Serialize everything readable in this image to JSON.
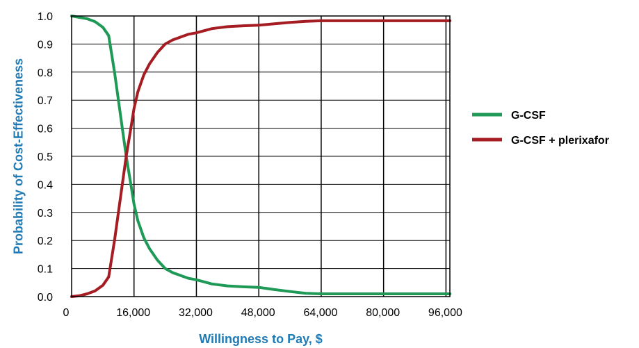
{
  "chart_data": {
    "type": "line",
    "title": "",
    "xlabel": "Willingness to Pay, $",
    "ylabel": "Probability of Cost-Effectiveness",
    "xlim": [
      0,
      97000
    ],
    "ylim": [
      0,
      1.0
    ],
    "x_ticks": [
      0,
      16000,
      32000,
      48000,
      64000,
      80000,
      96000
    ],
    "x_tick_labels": [
      "0",
      "16,000",
      "32,000",
      "48,000",
      "64,000",
      "80,000",
      "96,000"
    ],
    "y_ticks": [
      0,
      0.1,
      0.2,
      0.3,
      0.4,
      0.5,
      0.6,
      0.7,
      0.8,
      0.9,
      1.0
    ],
    "y_tick_labels": [
      "0.0",
      "0.1",
      "0.2",
      "0.3",
      "0.4",
      "0.5",
      "0.6",
      "0.7",
      "0.8",
      "0.9",
      "1.0"
    ],
    "grid": true,
    "legend_position": "right",
    "series": [
      {
        "name": "G-CSF",
        "color": "#1e9956",
        "x": [
          0,
          2000,
          4000,
          6000,
          8000,
          9500,
          11000,
          12500,
          14000,
          15200,
          16000,
          17000,
          18500,
          20000,
          22000,
          24000,
          26000,
          28000,
          30000,
          32000,
          36000,
          40000,
          44000,
          48000,
          52000,
          56000,
          60000,
          64000,
          70000,
          80000,
          90000,
          97000
        ],
        "values": [
          1.0,
          0.995,
          0.99,
          0.98,
          0.96,
          0.93,
          0.8,
          0.65,
          0.5,
          0.4,
          0.33,
          0.27,
          0.21,
          0.17,
          0.13,
          0.1,
          0.085,
          0.075,
          0.065,
          0.06,
          0.045,
          0.038,
          0.035,
          0.033,
          0.025,
          0.018,
          0.012,
          0.01,
          0.01,
          0.01,
          0.01,
          0.01
        ]
      },
      {
        "name": "G-CSF + plerixafor",
        "color": "#a51c22",
        "x": [
          0,
          2000,
          4000,
          6000,
          8000,
          9500,
          11000,
          12500,
          14000,
          15200,
          16000,
          17000,
          18500,
          20000,
          22000,
          24000,
          26000,
          28000,
          30000,
          32000,
          36000,
          40000,
          44000,
          48000,
          52000,
          56000,
          60000,
          64000,
          70000,
          80000,
          90000,
          97000
        ],
        "values": [
          0.0,
          0.003,
          0.01,
          0.02,
          0.04,
          0.07,
          0.2,
          0.35,
          0.5,
          0.6,
          0.67,
          0.73,
          0.79,
          0.83,
          0.87,
          0.9,
          0.915,
          0.925,
          0.935,
          0.94,
          0.955,
          0.962,
          0.965,
          0.967,
          0.972,
          0.977,
          0.981,
          0.983,
          0.983,
          0.983,
          0.983,
          0.983
        ]
      }
    ]
  }
}
